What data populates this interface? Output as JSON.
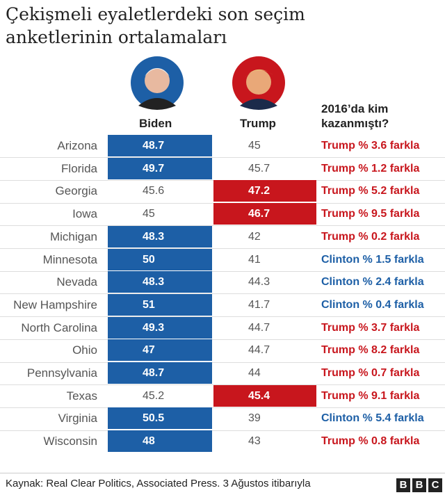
{
  "header": {
    "title": "Çekişmeli eyaletlerdeki son seçim anketlerinin ortalamaları"
  },
  "table": {
    "columns": [
      "Biden",
      "Trump",
      "2016’da kim kazanmıştı?"
    ],
    "colors": {
      "biden": "#1d5fa6",
      "trump": "#c8161d"
    },
    "rows": [
      {
        "state": "Arizona",
        "biden": 48.7,
        "trump": 45,
        "won_2016": "Trump % 3.6 farkla",
        "color": "#c8161d"
      },
      {
        "state": "Florida",
        "biden": 49.7,
        "trump": 45.7,
        "won_2016": "Trump % 1.2 farkla",
        "color": "#c8161d"
      },
      {
        "state": "Georgia",
        "biden": 45.6,
        "trump": 47.2,
        "won_2016": "Trump % 5.2 farkla",
        "color": "#c8161d"
      },
      {
        "state": "Iowa",
        "biden": 45,
        "trump": 46.7,
        "won_2016": "Trump % 9.5 farkla",
        "color": "#c8161d"
      },
      {
        "state": "Michigan",
        "biden": 48.3,
        "trump": 42,
        "won_2016": "Trump % 0.2 farkla",
        "color": "#c8161d"
      },
      {
        "state": "Minnesota",
        "biden": 50,
        "trump": 41,
        "won_2016": "Clinton % 1.5 farkla",
        "color": "#1d5fa6"
      },
      {
        "state": "Nevada",
        "biden": 48.3,
        "trump": 44.3,
        "won_2016": "Clinton % 2.4 farkla",
        "color": "#1d5fa6"
      },
      {
        "state": "New Hampshire",
        "biden": 51,
        "trump": 41.7,
        "won_2016": "Clinton % 0.4 farkla",
        "color": "#1d5fa6"
      },
      {
        "state": "North Carolina",
        "biden": 49.3,
        "trump": 44.7,
        "won_2016": "Trump % 3.7 farkla",
        "color": "#c8161d"
      },
      {
        "state": "Ohio",
        "biden": 47,
        "trump": 44.7,
        "won_2016": "Trump % 8.2 farkla",
        "color": "#c8161d"
      },
      {
        "state": "Pennsylvania",
        "biden": 48.7,
        "trump": 44,
        "won_2016": "Trump % 0.7 farkla",
        "color": "#c8161d"
      },
      {
        "state": "Texas",
        "biden": 45.2,
        "trump": 45.4,
        "won_2016": "Trump % 9.1 farkla",
        "color": "#c8161d"
      },
      {
        "state": "Virginia",
        "biden": 50.5,
        "trump": 39,
        "won_2016": "Clinton % 5.4 farkla",
        "color": "#1d5fa6"
      },
      {
        "state": "Wisconsin",
        "biden": 48,
        "trump": 43,
        "won_2016": "Trump % 0.8 farkla",
        "color": "#c8161d"
      }
    ]
  },
  "footer": {
    "source": "Kaynak: Real Clear Politics, Associated Press. 3 Ağustos itibarıyla",
    "logo": "BBC"
  }
}
